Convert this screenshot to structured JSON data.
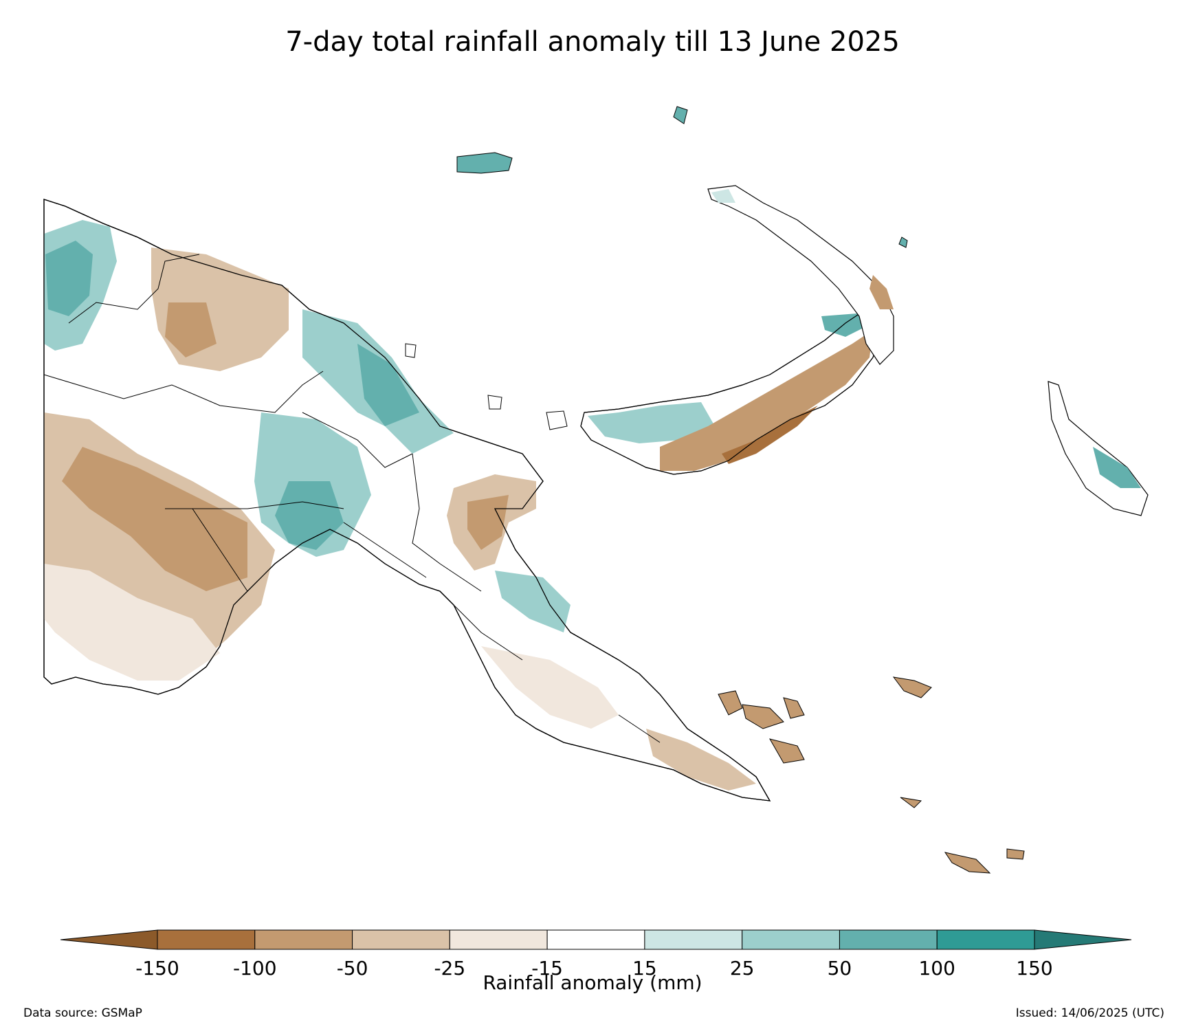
{
  "title": "7-day total rainfall anomaly till 13 June 2025",
  "colorbar": {
    "label": "Rainfall anomaly (mm)",
    "ticks": [
      "-150",
      "-100",
      "-50",
      "-25",
      "-15",
      "15",
      "25",
      "50",
      "100",
      "150"
    ],
    "bins": [
      {
        "color": "#8c5a2a"
      },
      {
        "color": "#a8703c"
      },
      {
        "color": "#c39a70"
      },
      {
        "color": "#dac2a8"
      },
      {
        "color": "#f1e7dd"
      },
      {
        "color": "#ffffff"
      },
      {
        "color": "#cde6e4"
      },
      {
        "color": "#9ccfcc"
      },
      {
        "color": "#63b0ad"
      },
      {
        "color": "#2f9b95"
      },
      {
        "color": "#257a76"
      }
    ],
    "extend": "both"
  },
  "map": {
    "region": "Papua New Guinea",
    "dry_color": "#c9a27c",
    "dry_strong_color": "#b7895c",
    "dry_light_color": "#e6d3c1",
    "wet_light_color": "#cde6e4",
    "wet_color": "#9ccfcc",
    "wet_strong_color": "#63b0ad"
  },
  "footer": {
    "source": "Data source: GSMaP",
    "issued": "Issued: 14/06/2025 (UTC)"
  }
}
